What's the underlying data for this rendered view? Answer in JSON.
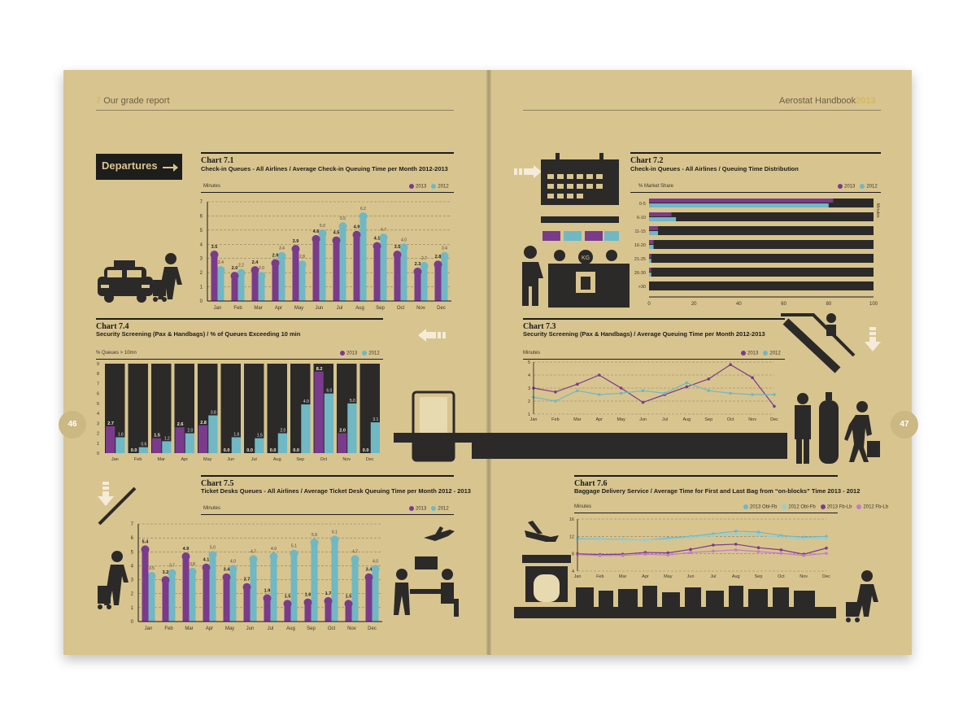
{
  "header": {
    "left_num": "7",
    "left_text": "Our grade report",
    "right_text": "Aerostat Handbook",
    "right_year": "2013"
  },
  "pages": {
    "left": "46",
    "right": "47"
  },
  "departures_label": "Departures",
  "colors": {
    "c2013": "#7a3b8c",
    "c2012": "#6fb8c4",
    "dark": "#2b2a28",
    "pink": "#c47ac8",
    "bg": "#d8c48f"
  },
  "icons": [
    "taxi-icon",
    "traveller-with-cart-icon",
    "calendar-board-icon",
    "checkin-desk-icon",
    "escalator-icon",
    "security-scanner-icon",
    "conveyor-belt-icon",
    "guard-icon",
    "gas-cylinder-icon",
    "traveller-icon",
    "ticket-desk-icon",
    "airplane-icon",
    "baggage-carousel-icon",
    "arrow-right-icon",
    "arrow-left-icon",
    "arrow-down-icon"
  ],
  "chart_data": [
    {
      "id": "7.1",
      "type": "bar",
      "title": "Chart 7.1",
      "subtitle": "Check-in Queues - All Airlines / Average Check-in Queuing Time per Month 2012-2013",
      "ylabel": "Minutes",
      "ylim": [
        0,
        7
      ],
      "yticks": [
        0,
        1,
        2,
        3,
        4,
        5,
        6,
        7
      ],
      "categories": [
        "Jan",
        "Feb",
        "Mar",
        "Apr",
        "May",
        "Jun",
        "Jul",
        "Aug",
        "Sep",
        "Oct",
        "Nov",
        "Dec"
      ],
      "series": [
        {
          "name": "2013",
          "values": [
            3.5,
            2.0,
            2.4,
            2.9,
            3.9,
            4.6,
            4.5,
            4.9,
            4.1,
            3.5,
            2.3,
            2.8
          ]
        },
        {
          "name": "2012",
          "values": [
            2.4,
            2.2,
            2.0,
            3.4,
            2.8,
            5.0,
            5.5,
            6.2,
            4.7,
            4.0,
            2.7,
            3.4
          ]
        }
      ]
    },
    {
      "id": "7.2",
      "type": "bar",
      "title": "Chart 7.2",
      "subtitle": "Check-in Queues - All Airlines / Queuing Time Distribution",
      "xlabel": "% Market Share",
      "ylabel": "Minutes",
      "xlim": [
        0,
        100
      ],
      "xticks": [
        0,
        20,
        40,
        60,
        80,
        100
      ],
      "categories": [
        "0-5",
        "6-10",
        "11-15",
        "16-20",
        "21-25",
        "26-30",
        ">30"
      ],
      "series": [
        {
          "name": "2013",
          "values": [
            82,
            10,
            4,
            2,
            1,
            1,
            0
          ]
        },
        {
          "name": "2012",
          "values": [
            80,
            12,
            4,
            2,
            1,
            1,
            0
          ]
        }
      ]
    },
    {
      "id": "7.3",
      "type": "line",
      "title": "Chart 7.3",
      "subtitle": "Security Screening (Pax & Handbags) / Average Queuing Time per Month 2012-2013",
      "ylabel": "Minutes",
      "ylim": [
        1,
        5
      ],
      "yticks": [
        1,
        2,
        3,
        4,
        5
      ],
      "categories": [
        "Jan",
        "Feb",
        "Mar",
        "Apr",
        "May",
        "Jun",
        "Jul",
        "Aug",
        "Sep",
        "Oct",
        "Nov",
        "Dec"
      ],
      "series": [
        {
          "name": "2013",
          "values": [
            3.0,
            2.7,
            3.3,
            4.0,
            3.0,
            1.9,
            2.5,
            3.1,
            3.7,
            4.8,
            3.8,
            1.6
          ]
        },
        {
          "name": "2012",
          "values": [
            2.3,
            2.0,
            2.8,
            2.5,
            2.6,
            2.8,
            2.6,
            3.4,
            2.8,
            2.6,
            2.5,
            2.5
          ]
        }
      ]
    },
    {
      "id": "7.4",
      "type": "bar",
      "title": "Chart 7.4",
      "subtitle": "Security Screening (Pax & Handbags) / % of Queues Exceeding 10 min",
      "ylabel": "% Queues > 10mn",
      "ylim": [
        0,
        9
      ],
      "yticks": [
        0,
        1,
        2,
        3,
        4,
        5,
        6,
        7,
        8,
        9
      ],
      "categories": [
        "Jan",
        "Feb",
        "Mar",
        "Apr",
        "May",
        "Jun",
        "Jul",
        "Aug",
        "Sep",
        "Oct",
        "Nov",
        "Dec"
      ],
      "series": [
        {
          "name": "2013",
          "values": [
            2.7,
            0.0,
            1.5,
            2.6,
            2.8,
            0.0,
            0.0,
            0.0,
            0.0,
            8.2,
            2.0,
            0.0
          ]
        },
        {
          "name": "2012",
          "values": [
            1.6,
            0.6,
            1.2,
            2.0,
            3.8,
            1.6,
            1.5,
            2.0,
            4.9,
            6.0,
            5.0,
            3.1
          ]
        }
      ]
    },
    {
      "id": "7.5",
      "type": "bar",
      "title": "Chart 7.5",
      "subtitle": "Ticket Desks Queues - All Airlines / Average Ticket Desk Queuing Time per Month 2012 - 2013",
      "ylabel": "Minutes",
      "ylim": [
        0,
        7
      ],
      "yticks": [
        0,
        1,
        2,
        3,
        4,
        5,
        6,
        7
      ],
      "categories": [
        "Jan",
        "Feb",
        "Mar",
        "Apr",
        "May",
        "Jun",
        "Jul",
        "Aug",
        "Sep",
        "Oct",
        "Nov",
        "Dec"
      ],
      "series": [
        {
          "name": "2013",
          "values": [
            5.4,
            3.2,
            4.9,
            4.1,
            3.4,
            2.7,
            1.9,
            1.5,
            1.6,
            1.7,
            1.5,
            3.4
          ]
        },
        {
          "name": "2012",
          "values": [
            3.5,
            3.7,
            3.8,
            5.0,
            4.0,
            4.7,
            4.9,
            5.1,
            5.9,
            6.1,
            4.7,
            4.0
          ]
        }
      ]
    },
    {
      "id": "7.6",
      "type": "line",
      "title": "Chart 7.6",
      "subtitle": "Baggage Delivery Service / Average Time for First and Last Bag from “on-blocks” Time 2013 - 2012",
      "ylabel": "Minutes",
      "ylim": [
        4,
        16
      ],
      "yticks": [
        4,
        8,
        12,
        16
      ],
      "categories": [
        "Jan",
        "Feb",
        "Mar",
        "Apr",
        "May",
        "Jun",
        "Jul",
        "Aug",
        "Sep",
        "Oct",
        "Nov",
        "Dec"
      ],
      "series": [
        {
          "name": "2013 Obl-Fb",
          "values": [
            11.5,
            11.4,
            11.3,
            11.2,
            11.6,
            12.0,
            12.6,
            13.2,
            13.0,
            12.2,
            11.8,
            12.0
          ]
        },
        {
          "name": "2012 Obl-Fb",
          "values": [
            11.3,
            11.3,
            11.2,
            11.2,
            11.3,
            11.8,
            12.2,
            12.6,
            12.3,
            11.8,
            11.4,
            11.5
          ]
        },
        {
          "name": "2013 Fb-Lb",
          "values": [
            8.0,
            7.8,
            7.9,
            8.3,
            8.2,
            9.0,
            10.0,
            10.2,
            9.4,
            8.9,
            7.9,
            9.3
          ]
        },
        {
          "name": "2012 Fb-Lb",
          "values": [
            7.8,
            7.6,
            7.6,
            7.9,
            7.7,
            8.3,
            8.6,
            8.9,
            8.5,
            8.1,
            7.6,
            8.1
          ]
        }
      ]
    }
  ]
}
